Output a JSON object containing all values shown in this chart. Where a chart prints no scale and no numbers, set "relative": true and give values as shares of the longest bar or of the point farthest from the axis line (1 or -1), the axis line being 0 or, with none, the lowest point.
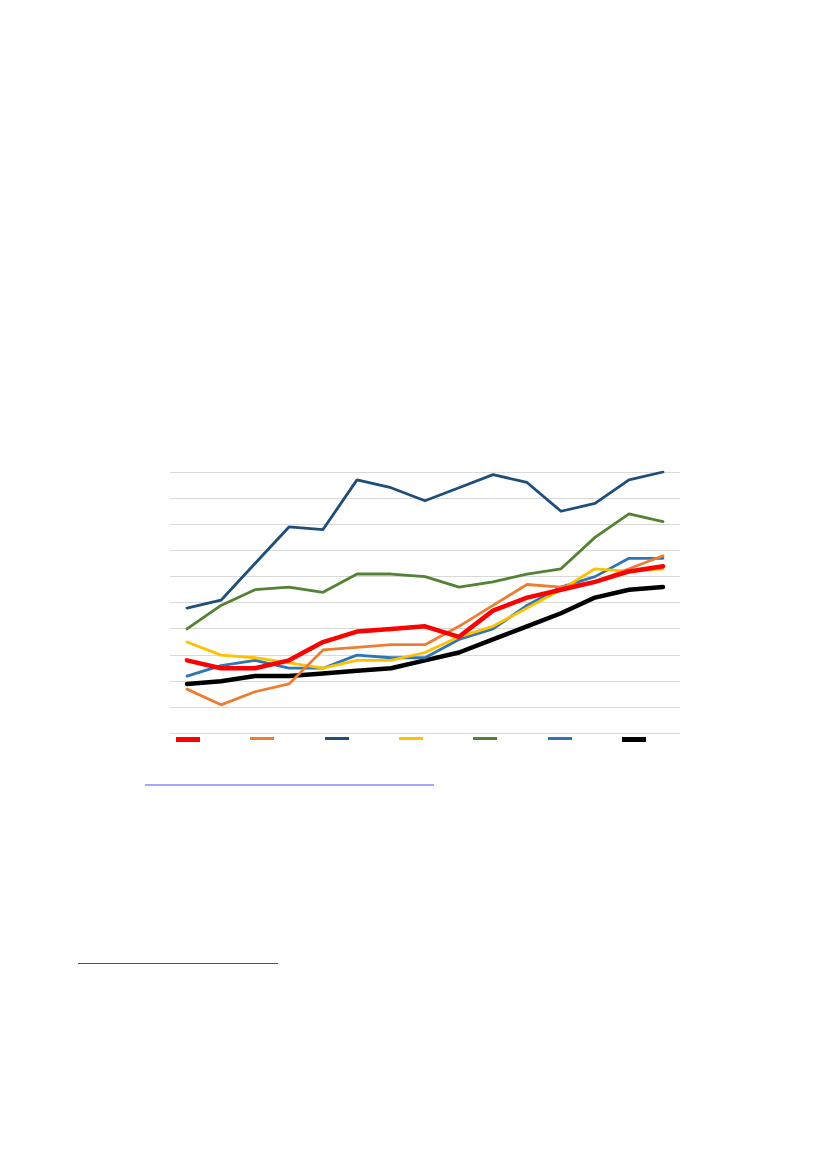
{
  "chart_data": {
    "type": "line",
    "relative": true,
    "grid": "y",
    "marker": "none",
    "line_style": "solid",
    "categories": [
      null,
      null,
      null,
      null,
      null,
      null,
      null,
      null,
      null,
      null,
      null,
      null,
      null,
      null,
      null
    ],
    "series": [
      {
        "color": "#ff0000",
        "values": [
          0.28,
          0.25,
          0.25,
          0.28,
          0.35,
          0.39,
          0.4,
          0.41,
          0.37,
          0.47,
          0.52,
          0.55,
          0.58,
          0.62,
          0.64
        ]
      },
      {
        "color": "#ed7d31",
        "values": [
          0.17,
          0.11,
          0.16,
          0.19,
          0.32,
          0.33,
          0.34,
          0.34,
          0.41,
          0.49,
          0.57,
          0.56,
          0.58,
          0.63,
          0.68
        ]
      },
      {
        "color": "#1f4e79",
        "values": [
          0.48,
          0.51,
          0.65,
          0.79,
          0.78,
          0.97,
          0.94,
          0.89,
          0.94,
          0.99,
          0.96,
          0.85,
          0.88,
          0.97,
          1
        ]
      },
      {
        "color": "#ffc000",
        "values": [
          0.35,
          0.3,
          0.29,
          0.27,
          0.25,
          0.28,
          0.28,
          0.31,
          0.37,
          0.41,
          0.48,
          0.55,
          0.63,
          0.62,
          0.63
        ]
      },
      {
        "color": "#548235",
        "values": [
          0.4,
          0.49,
          0.55,
          0.56,
          0.54,
          0.61,
          0.61,
          0.6,
          0.56,
          0.58,
          0.61,
          0.63,
          0.75,
          0.84,
          0.81
        ]
      },
      {
        "color": "#2e75b6",
        "values": [
          0.22,
          0.26,
          0.28,
          0.25,
          0.25,
          0.3,
          0.29,
          0.29,
          0.36,
          0.4,
          0.49,
          0.56,
          0.6,
          0.67,
          0.67
        ]
      },
      {
        "color": "#000000",
        "values": [
          0.19,
          0.2,
          0.22,
          0.22,
          0.23,
          0.24,
          0.25,
          0.28,
          0.31,
          0.36,
          0.41,
          0.46,
          0.52,
          0.55,
          0.56
        ]
      }
    ]
  }
}
